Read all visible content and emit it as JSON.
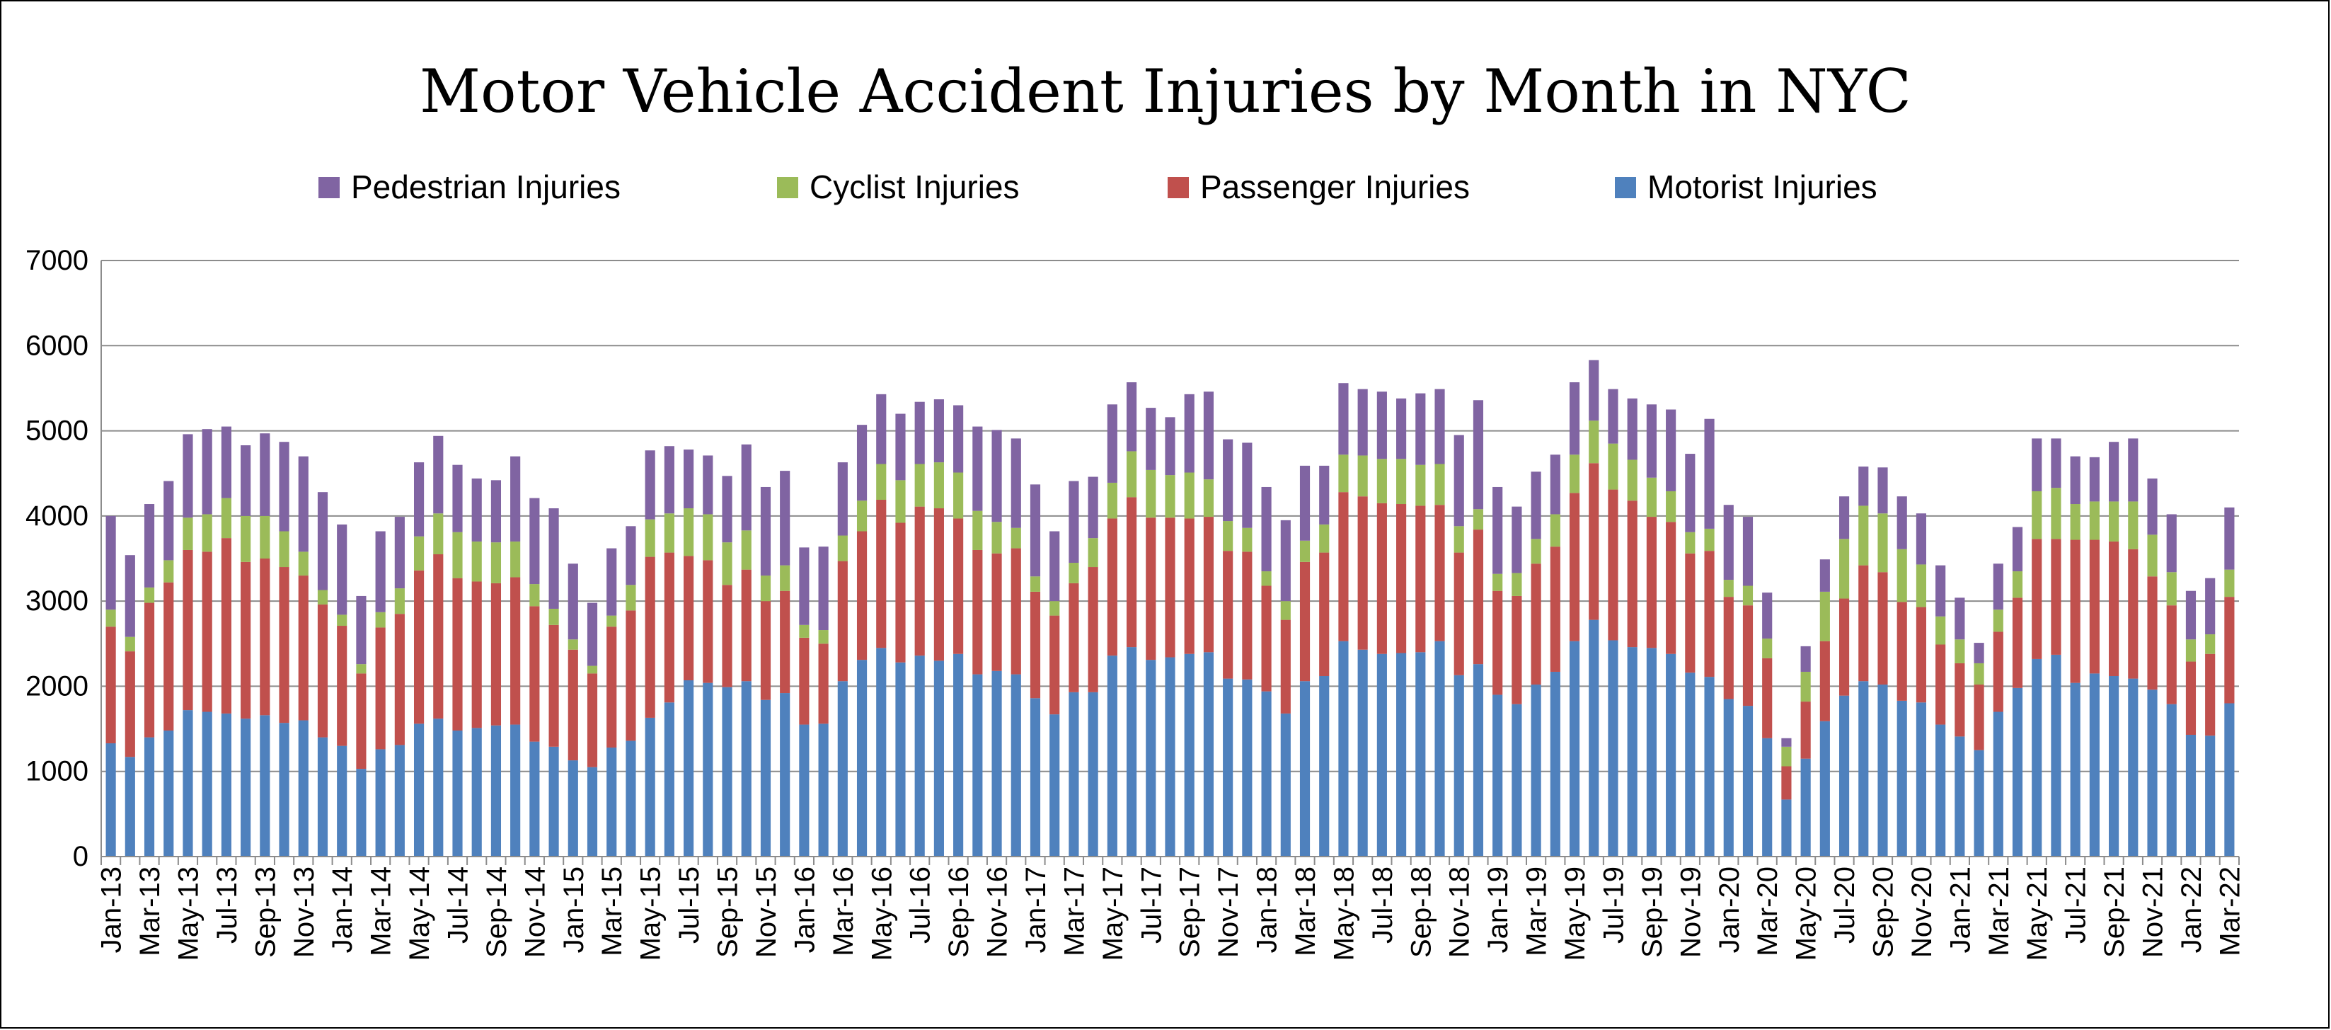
{
  "chart_data": {
    "type": "bar",
    "stacked": true,
    "title": "Motor Vehicle Accident Injuries by Month in NYC",
    "ylim": [
      0,
      7000
    ],
    "yticks": [
      "0",
      "1000",
      "2000",
      "3000",
      "4000",
      "5000",
      "6000",
      "7000"
    ],
    "grid": true,
    "legend_position": "top",
    "categories": [
      "Jan-13",
      "Feb-13",
      "Mar-13",
      "Apr-13",
      "May-13",
      "Jun-13",
      "Jul-13",
      "Aug-13",
      "Sep-13",
      "Oct-13",
      "Nov-13",
      "Dec-13",
      "Jan-14",
      "Feb-14",
      "Mar-14",
      "Apr-14",
      "May-14",
      "Jun-14",
      "Jul-14",
      "Aug-14",
      "Sep-14",
      "Oct-14",
      "Nov-14",
      "Dec-14",
      "Jan-15",
      "Feb-15",
      "Mar-15",
      "Apr-15",
      "May-15",
      "Jun-15",
      "Jul-15",
      "Aug-15",
      "Sep-15",
      "Oct-15",
      "Nov-15",
      "Dec-15",
      "Jan-16",
      "Feb-16",
      "Mar-16",
      "Apr-16",
      "May-16",
      "Jun-16",
      "Jul-16",
      "Aug-16",
      "Sep-16",
      "Oct-16",
      "Nov-16",
      "Dec-16",
      "Jan-17",
      "Feb-17",
      "Mar-17",
      "Apr-17",
      "May-17",
      "Jun-17",
      "Jul-17",
      "Aug-17",
      "Sep-17",
      "Oct-17",
      "Nov-17",
      "Dec-17",
      "Jan-18",
      "Feb-18",
      "Mar-18",
      "Apr-18",
      "May-18",
      "Jun-18",
      "Jul-18",
      "Aug-18",
      "Sep-18",
      "Oct-18",
      "Nov-18",
      "Dec-18",
      "Jan-19",
      "Feb-19",
      "Mar-19",
      "Apr-19",
      "May-19",
      "Jun-19",
      "Jul-19",
      "Aug-19",
      "Sep-19",
      "Oct-19",
      "Nov-19",
      "Dec-19",
      "Jan-20",
      "Feb-20",
      "Mar-20",
      "Apr-20",
      "May-20",
      "Jun-20",
      "Jul-20",
      "Aug-20",
      "Sep-20",
      "Oct-20",
      "Nov-20",
      "Dec-20",
      "Jan-21",
      "Feb-21",
      "Mar-21",
      "Apr-21",
      "May-21",
      "Jun-21",
      "Jul-21",
      "Aug-21",
      "Sep-21",
      "Oct-21",
      "Nov-21",
      "Dec-21",
      "Jan-22",
      "Feb-22",
      "Mar-22"
    ],
    "series": [
      {
        "name": "Motorist Injuries",
        "color": "#4F81BD",
        "values": [
          1330,
          1170,
          1400,
          1480,
          1720,
          1700,
          1680,
          1620,
          1660,
          1570,
          1600,
          1400,
          1300,
          1030,
          1260,
          1310,
          1560,
          1620,
          1480,
          1510,
          1540,
          1550,
          1350,
          1290,
          1130,
          1050,
          1280,
          1360,
          1630,
          1810,
          2070,
          2040,
          1990,
          2060,
          1840,
          1920,
          1550,
          1560,
          2060,
          2310,
          2450,
          2280,
          2360,
          2300,
          2380,
          2140,
          2180,
          2140,
          1860,
          1670,
          1930,
          1930,
          2360,
          2460,
          2310,
          2340,
          2380,
          2400,
          2090,
          2080,
          1940,
          1680,
          2060,
          2120,
          2530,
          2430,
          2380,
          2390,
          2400,
          2530,
          2130,
          2260,
          1900,
          1790,
          2020,
          2170,
          2530,
          2780,
          2540,
          2460,
          2450,
          2380,
          2160,
          2110,
          1850,
          1770,
          1390,
          670,
          1150,
          1590,
          1890,
          2060,
          2020,
          1830,
          1810,
          1550,
          1410,
          1250,
          1700,
          1980,
          2320,
          2370,
          2040,
          2150,
          2120,
          2090,
          1960,
          1790,
          1430,
          1420,
          1800
        ]
      },
      {
        "name": "Passenger Injuries",
        "color": "#C0504D",
        "values": [
          1370,
          1240,
          1580,
          1740,
          1880,
          1880,
          2060,
          1840,
          1840,
          1830,
          1700,
          1560,
          1410,
          1120,
          1430,
          1540,
          1800,
          1930,
          1790,
          1720,
          1670,
          1730,
          1590,
          1430,
          1300,
          1100,
          1420,
          1530,
          1890,
          1760,
          1460,
          1440,
          1200,
          1310,
          1160,
          1200,
          1020,
          940,
          1410,
          1510,
          1740,
          1640,
          1750,
          1790,
          1590,
          1460,
          1380,
          1480,
          1250,
          1160,
          1280,
          1470,
          1610,
          1760,
          1670,
          1640,
          1590,
          1590,
          1500,
          1500,
          1240,
          1100,
          1400,
          1450,
          1750,
          1800,
          1770,
          1750,
          1720,
          1600,
          1440,
          1580,
          1220,
          1270,
          1420,
          1470,
          1740,
          1840,
          1770,
          1720,
          1540,
          1550,
          1400,
          1480,
          1200,
          1180,
          940,
          390,
          670,
          940,
          1140,
          1360,
          1320,
          1160,
          1120,
          940,
          860,
          770,
          940,
          1060,
          1410,
          1360,
          1680,
          1570,
          1580,
          1520,
          1330,
          1160,
          860,
          960,
          1250
        ]
      },
      {
        "name": "Cyclist Injuries",
        "color": "#9BBB59",
        "values": [
          200,
          170,
          180,
          260,
          380,
          440,
          470,
          540,
          500,
          420,
          280,
          170,
          130,
          110,
          180,
          300,
          400,
          480,
          540,
          470,
          480,
          420,
          260,
          190,
          120,
          90,
          130,
          300,
          440,
          460,
          560,
          540,
          500,
          460,
          300,
          300,
          150,
          160,
          300,
          360,
          420,
          500,
          500,
          540,
          540,
          460,
          370,
          240,
          180,
          170,
          240,
          340,
          420,
          540,
          560,
          500,
          540,
          440,
          350,
          280,
          170,
          220,
          250,
          330,
          440,
          480,
          520,
          530,
          480,
          480,
          310,
          240,
          200,
          270,
          290,
          380,
          450,
          500,
          540,
          480,
          460,
          360,
          250,
          260,
          200,
          230,
          230,
          230,
          350,
          580,
          700,
          700,
          690,
          620,
          500,
          330,
          280,
          250,
          260,
          310,
          560,
          600,
          420,
          450,
          470,
          560,
          490,
          390,
          260,
          230,
          320
        ]
      },
      {
        "name": "Pedestrian Injuries",
        "color": "#8064A2",
        "values": [
          1100,
          960,
          980,
          930,
          980,
          1000,
          840,
          830,
          970,
          1050,
          1120,
          1150,
          1060,
          800,
          950,
          840,
          870,
          910,
          790,
          740,
          730,
          1000,
          1010,
          1180,
          890,
          740,
          790,
          690,
          810,
          790,
          690,
          690,
          780,
          1010,
          1040,
          1110,
          910,
          980,
          860,
          890,
          820,
          780,
          730,
          740,
          790,
          990,
          1080,
          1050,
          1080,
          820,
          960,
          720,
          920,
          810,
          730,
          680,
          920,
          1030,
          960,
          1000,
          990,
          950,
          880,
          690,
          840,
          780,
          790,
          710,
          840,
          880,
          1070,
          1280,
          1020,
          780,
          790,
          700,
          850,
          710,
          640,
          720,
          860,
          960,
          920,
          1290,
          880,
          810,
          540,
          100,
          300,
          380,
          500,
          460,
          540,
          620,
          600,
          600,
          490,
          240,
          540,
          520,
          620,
          580,
          560,
          520,
          700,
          740,
          660,
          680,
          570,
          660,
          730
        ]
      }
    ]
  }
}
